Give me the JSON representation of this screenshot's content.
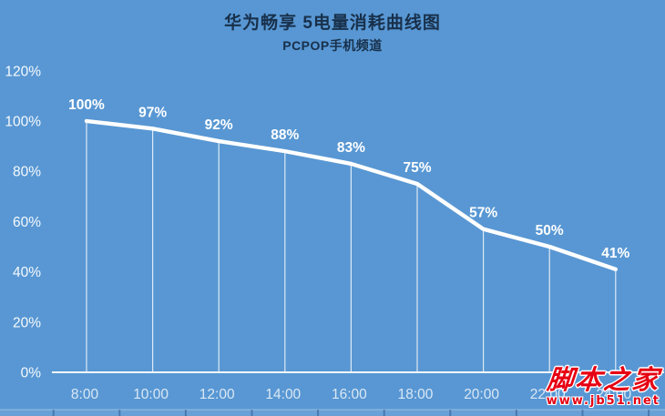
{
  "chart_data": {
    "type": "line",
    "title": "华为畅享 5电量消耗曲线图",
    "subtitle": "PCPOP手机频道",
    "x": [
      "8:00",
      "10:00",
      "12:00",
      "14:00",
      "16:00",
      "18:00",
      "20:00",
      "22:00",
      "24:00"
    ],
    "values": [
      100,
      97,
      92,
      88,
      83,
      75,
      57,
      50,
      41
    ],
    "data_labels": [
      "100%",
      "97%",
      "92%",
      "88%",
      "83%",
      "75%",
      "57%",
      "50%",
      "41%"
    ],
    "yticks": [
      "0%",
      "20%",
      "40%",
      "60%",
      "80%",
      "100%",
      "120%"
    ],
    "ytick_step": 20,
    "ylim": [
      0,
      120
    ],
    "xlabel": "",
    "ylabel": "",
    "grid": false,
    "legend": "none",
    "line_color": "#ffffff",
    "background_color": "#5897d3",
    "label_color": "#ffffff",
    "title_color": "#18304b"
  },
  "watermark": {
    "site_name": "脚本之家",
    "site_url": "www.jb51.net",
    "color": "#e60012"
  }
}
